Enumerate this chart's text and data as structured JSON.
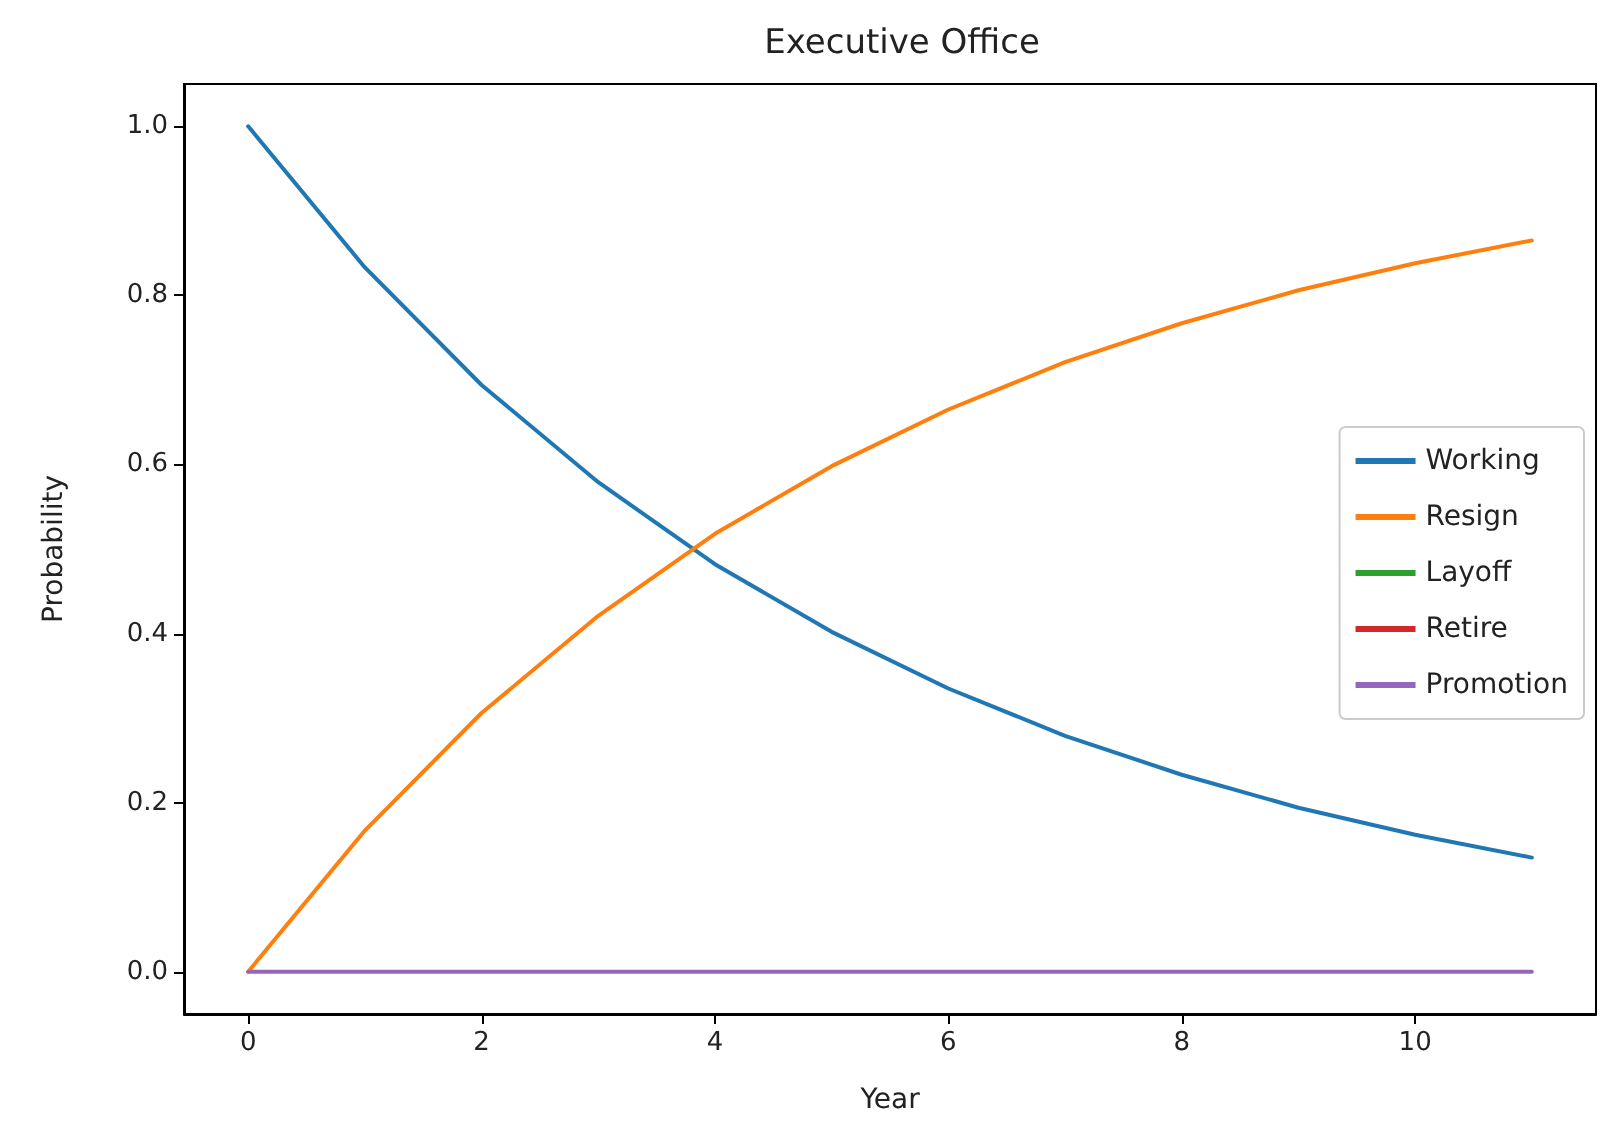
{
  "chart_data": {
    "type": "line",
    "title": "Executive Office",
    "xlabel": "Year",
    "ylabel": "Probability",
    "x": [
      0,
      1,
      2,
      3,
      4,
      5,
      6,
      7,
      8,
      9,
      10,
      11
    ],
    "series": [
      {
        "name": "Working",
        "color": "#1f77b4",
        "values": [
          1.0,
          0.833,
          0.694,
          0.579,
          0.482,
          0.402,
          0.335,
          0.279,
          0.233,
          0.194,
          0.162,
          0.135
        ]
      },
      {
        "name": "Resign",
        "color": "#ff7f0e",
        "values": [
          0.0,
          0.167,
          0.306,
          0.421,
          0.518,
          0.598,
          0.665,
          0.721,
          0.767,
          0.806,
          0.838,
          0.865
        ]
      },
      {
        "name": "Layoff",
        "color": "#2ca02c",
        "values": [
          null,
          null,
          null,
          null,
          null,
          null,
          null,
          null,
          null,
          null,
          null,
          null
        ]
      },
      {
        "name": "Retire",
        "color": "#d62728",
        "values": [
          null,
          null,
          null,
          null,
          null,
          null,
          null,
          null,
          null,
          null,
          null,
          null
        ]
      },
      {
        "name": "Promotion",
        "color": "#9467bd",
        "values": [
          0,
          0,
          0,
          0,
          0,
          0,
          0,
          0,
          0,
          0,
          0,
          0
        ]
      }
    ],
    "xlim": [
      -0.55,
      11.55
    ],
    "xticks": [
      0,
      2,
      4,
      6,
      8,
      10
    ],
    "ylim": [
      -0.05,
      1.05
    ],
    "yticks": [
      {
        "value": 0,
        "label": "0.0"
      },
      0.2,
      0.4,
      0.6,
      0.8,
      {
        "value": 1,
        "label": "1.0"
      }
    ],
    "grid": false,
    "legend": "right",
    "marker": "none",
    "line_style": "solid"
  }
}
